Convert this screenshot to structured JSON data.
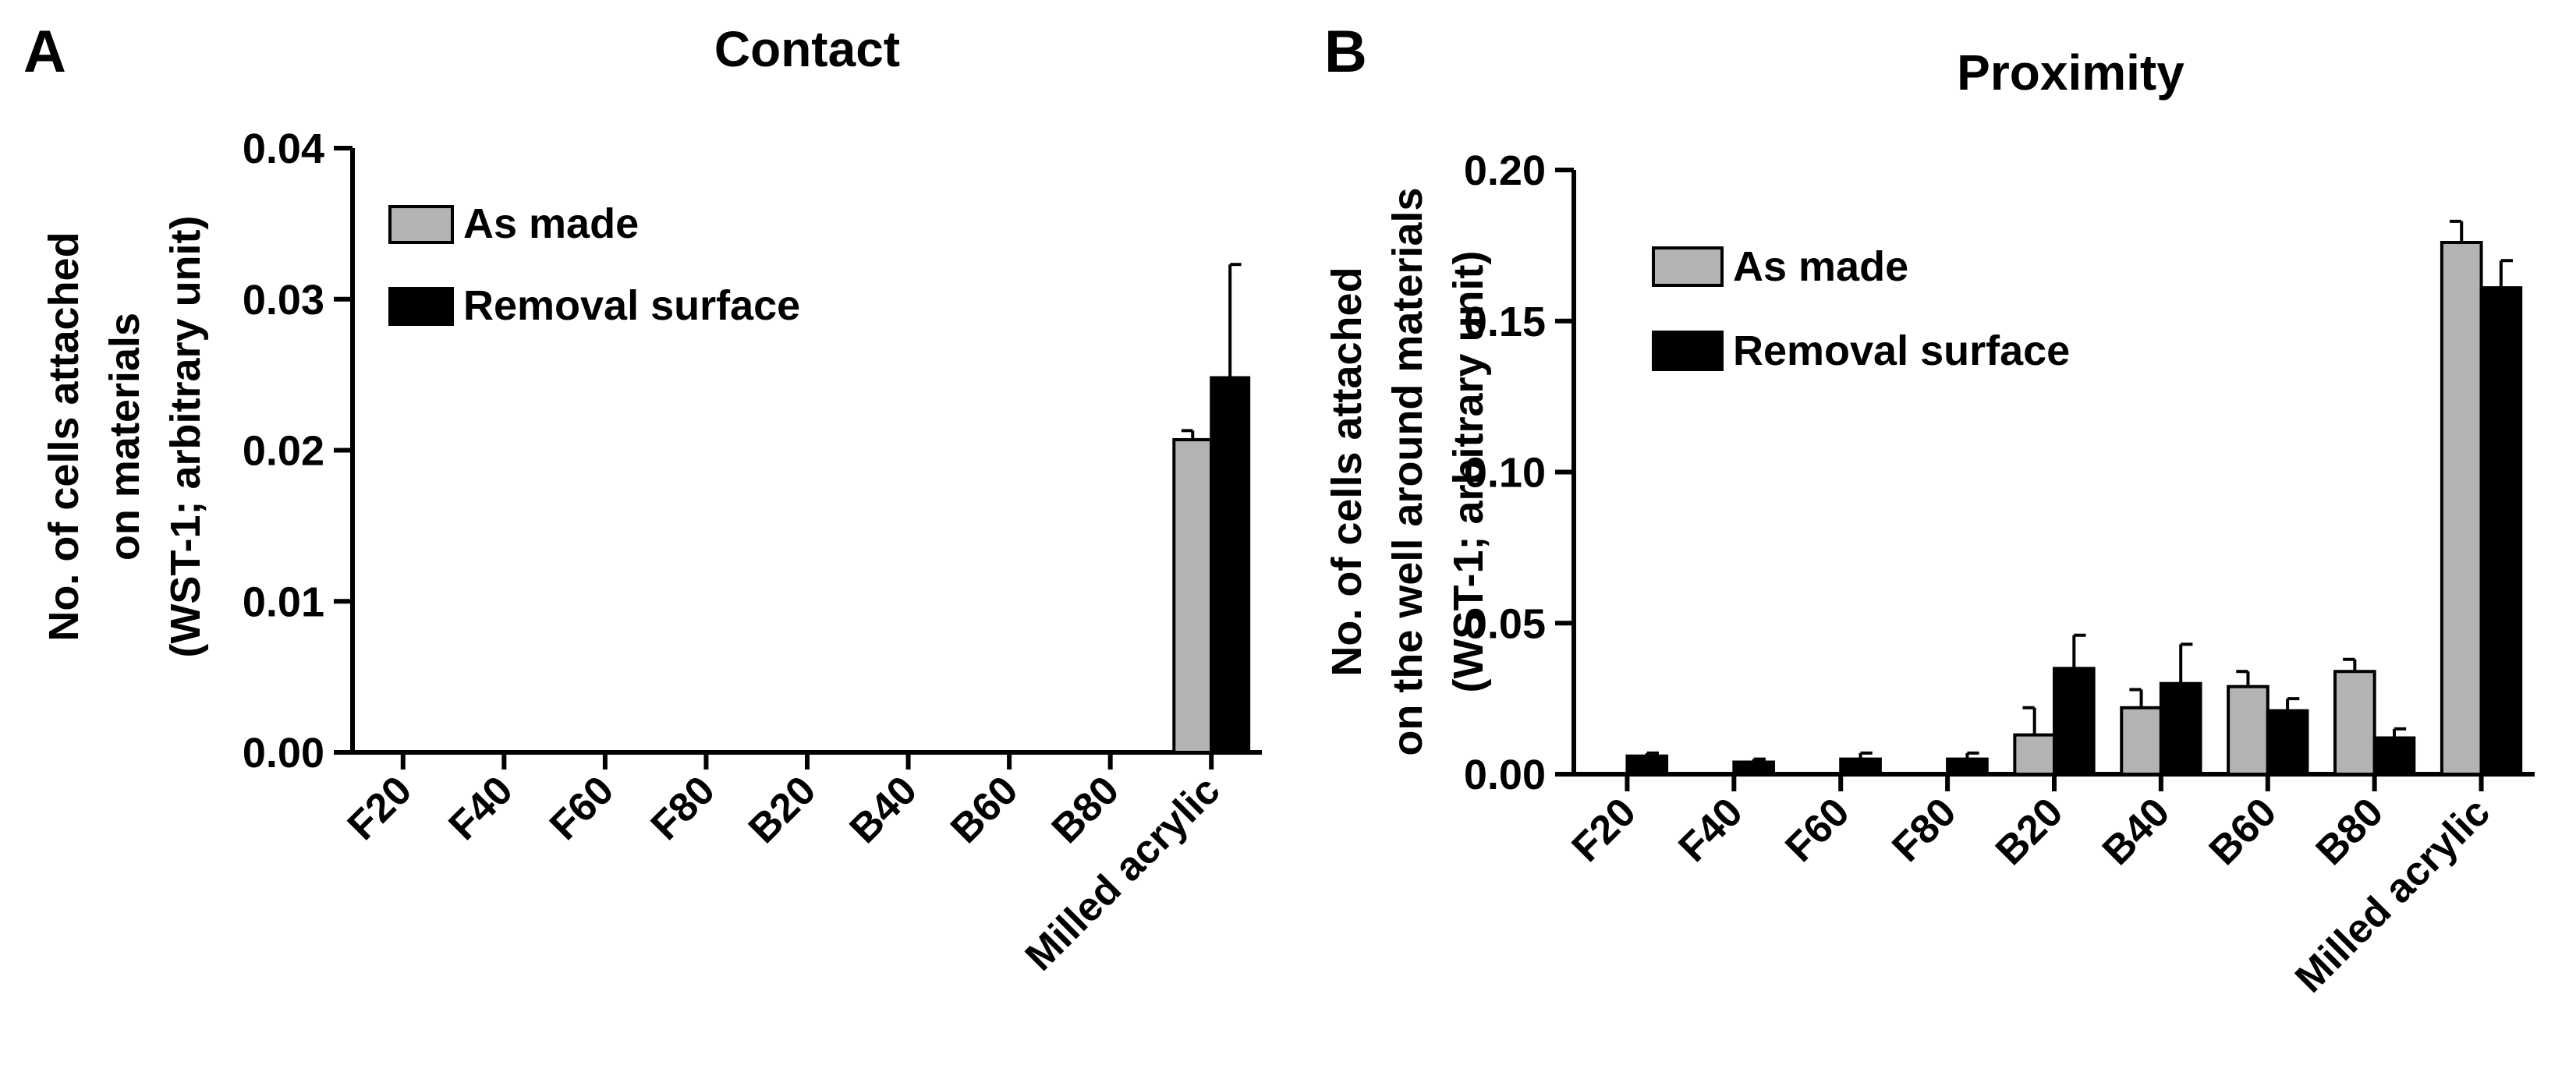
{
  "chart_data": [
    {
      "type": "bar",
      "panel": "A",
      "title": "Contact",
      "ylabel": [
        "No. of cells attached",
        "on materials",
        "(WST-1; arbitrary unit)"
      ],
      "xlabel": "",
      "categories": [
        "F20",
        "F40",
        "F60",
        "F80",
        "B20",
        "B40",
        "B60",
        "B80",
        "Milled acrylic"
      ],
      "ylim": [
        0,
        0.04
      ],
      "yticks": [
        "0.00",
        "0.01",
        "0.02",
        "0.03",
        "0.04"
      ],
      "legend_position": "top-left",
      "grid": false,
      "series": [
        {
          "name": "As made",
          "color": "#b3b3b3",
          "values": [
            0,
            0,
            0,
            0,
            0,
            0,
            0,
            0,
            0.0207
          ],
          "errors": [
            0,
            0,
            0,
            0,
            0,
            0,
            0,
            0,
            0.0006
          ]
        },
        {
          "name": "Removal surface",
          "color": "#000000",
          "values": [
            0,
            0,
            0,
            0,
            0,
            0,
            0,
            0,
            0.0248
          ],
          "errors": [
            0,
            0,
            0,
            0,
            0,
            0,
            0,
            0,
            0.0075
          ]
        }
      ]
    },
    {
      "type": "bar",
      "panel": "B",
      "title": "Proximity",
      "ylabel": [
        "No. of cells attached",
        "on the well around materials",
        "(WST-1; arbitrary unit)"
      ],
      "xlabel": "",
      "categories": [
        "F20",
        "F40",
        "F60",
        "F80",
        "B20",
        "B40",
        "B60",
        "B80",
        "Milled acrylic"
      ],
      "ylim": [
        0,
        0.2
      ],
      "yticks": [
        "0.00",
        "0.05",
        "0.10",
        "0.15",
        "0.20"
      ],
      "legend_position": "top-left",
      "grid": false,
      "series": [
        {
          "name": "As made",
          "color": "#b3b3b3",
          "values": [
            0,
            0,
            0,
            0,
            0.013,
            0.022,
            0.029,
            0.034,
            0.176
          ],
          "errors": [
            0,
            0,
            0,
            0,
            0.009,
            0.006,
            0.005,
            0.004,
            0.007
          ]
        },
        {
          "name": "Removal surface",
          "color": "#000000",
          "values": [
            0.006,
            0.004,
            0.005,
            0.005,
            0.035,
            0.03,
            0.021,
            0.012,
            0.161
          ],
          "errors": [
            0.001,
            0.001,
            0.002,
            0.002,
            0.011,
            0.013,
            0.004,
            0.003,
            0.009
          ]
        }
      ]
    }
  ]
}
